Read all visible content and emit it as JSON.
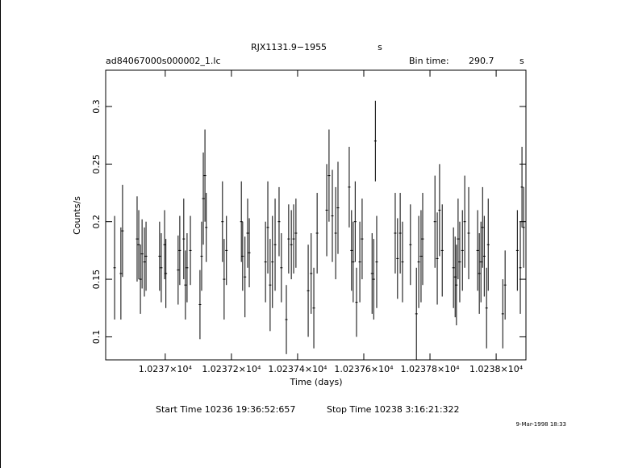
{
  "chart_data": {
    "type": "errorbar",
    "title": "RJX1131.9−1955",
    "title_unit": "s",
    "file_name": "ad84067000s000002_1.lc",
    "bin_time_label": "Bin time:",
    "bin_time": "290.7",
    "bin_time_unit": "s",
    "x_label": "Time (days)",
    "y_label": "Counts/s",
    "start_time": "Start Time 10236 19:36:52:657",
    "stop_time": "Stop Time 10238  3:16:21:322",
    "date": "9-Mar-1998 18:33",
    "color": "#000000",
    "xlim": [
      10236.82,
      10238.09
    ],
    "ylim": [
      0.08,
      0.3315
    ],
    "xticks": [
      {
        "value": 10237,
        "label": "1.0237×10⁴"
      },
      {
        "value": 10237.2,
        "label": "1.02372×10⁴"
      },
      {
        "value": 10237.4,
        "label": "1.02374×10⁴"
      },
      {
        "value": 10237.6,
        "label": "1.02376×10⁴"
      },
      {
        "value": 10237.8,
        "label": "1.02378×10⁴"
      },
      {
        "value": 10238,
        "label": "1.0238×10⁴"
      }
    ],
    "yticks": [
      0.1,
      0.15,
      0.2,
      0.25,
      0.3
    ],
    "x": [
      10236.847,
      10236.866,
      10236.871,
      10236.915,
      10236.92,
      10236.925,
      10236.93,
      10236.937,
      10236.942,
      10236.983,
      10236.988,
      10236.998,
      10237.002,
      10237.039,
      10237.044,
      10237.056,
      10237.061,
      10237.066,
      10237.076,
      10237.105,
      10237.11,
      10237.115,
      10237.12,
      10237.124,
      10237.173,
      10237.178,
      10237.185,
      10237.23,
      10237.234,
      10237.241,
      10237.249,
      10237.254,
      10237.303,
      10237.31,
      10237.317,
      10237.324,
      10237.332,
      10237.344,
      10237.351,
      10237.366,
      10237.373,
      10237.381,
      10237.388,
      10237.395,
      10237.432,
      10237.441,
      10237.449,
      10237.459,
      10237.488,
      10237.495,
      10237.505,
      10237.515,
      10237.522,
      10237.556,
      10237.563,
      10237.568,
      10237.574,
      10237.578,
      10237.588,
      10237.595,
      10237.625,
      10237.63,
      10237.635,
      10237.639,
      10237.695,
      10237.702,
      10237.71,
      10237.717,
      10237.741,
      10237.759,
      10237.766,
      10237.773,
      10237.778,
      10237.815,
      10237.822,
      10237.829,
      10237.837,
      10237.871,
      10237.876,
      10237.88,
      10237.885,
      10237.89,
      10237.898,
      10237.905,
      10237.917,
      10237.944,
      10237.949,
      10237.954,
      10237.959,
      10237.964,
      10237.971,
      10237.976,
      10238.02,
      10238.027,
      10238.064,
      10238.073,
      10238.078,
      10238.083
    ],
    "values": [
      0.16,
      0.155,
      0.192,
      0.185,
      0.18,
      0.15,
      0.172,
      0.165,
      0.17,
      0.17,
      0.16,
      0.18,
      0.155,
      0.158,
      0.175,
      0.185,
      0.145,
      0.16,
      0.175,
      0.128,
      0.17,
      0.22,
      0.24,
      0.195,
      0.2,
      0.15,
      0.175,
      0.2,
      0.17,
      0.152,
      0.19,
      0.173,
      0.165,
      0.195,
      0.145,
      0.165,
      0.18,
      0.2,
      0.16,
      0.115,
      0.185,
      0.18,
      0.185,
      0.19,
      0.14,
      0.155,
      0.125,
      0.19,
      0.21,
      0.24,
      0.205,
      0.19,
      0.212,
      0.23,
      0.175,
      0.165,
      0.2,
      0.13,
      0.165,
      0.185,
      0.155,
      0.15,
      0.27,
      0.165,
      0.19,
      0.168,
      0.19,
      0.165,
      0.18,
      0.12,
      0.165,
      0.17,
      0.185,
      0.2,
      0.168,
      0.21,
      0.175,
      0.16,
      0.152,
      0.145,
      0.185,
      0.165,
      0.175,
      0.2,
      0.19,
      0.175,
      0.155,
      0.165,
      0.195,
      0.17,
      0.125,
      0.18,
      0.12,
      0.145,
      0.175,
      0.16,
      0.23,
      0.195
    ],
    "errors": [
      0.045,
      0.04,
      0.04,
      0.037,
      0.03,
      0.03,
      0.03,
      0.03,
      0.03,
      0.03,
      0.03,
      0.03,
      0.03,
      0.03,
      0.03,
      0.035,
      0.03,
      0.03,
      0.03,
      0.03,
      0.03,
      0.04,
      0.04,
      0.03,
      0.035,
      0.035,
      0.03,
      0.035,
      0.03,
      0.035,
      0.03,
      0.03,
      0.035,
      0.04,
      0.04,
      0.04,
      0.04,
      0.03,
      0.03,
      0.03,
      0.03,
      0.03,
      0.03,
      0.03,
      0.04,
      0.035,
      0.035,
      0.035,
      0.04,
      0.04,
      0.04,
      0.04,
      0.04,
      0.035,
      0.035,
      0.035,
      0.035,
      0.03,
      0.035,
      0.035,
      0.035,
      0.035,
      0.035,
      0.04,
      0.035,
      0.035,
      0.035,
      0.035,
      0.035,
      0.04,
      0.04,
      0.04,
      0.04,
      0.04,
      0.04,
      0.04,
      0.04,
      0.035,
      0.035,
      0.035,
      0.035,
      0.035,
      0.035,
      0.04,
      0.04,
      0.035,
      0.035,
      0.035,
      0.035,
      0.035,
      0.035,
      0.04,
      0.03,
      0.03,
      0.035,
      0.04,
      0.035,
      0.035
    ]
  }
}
